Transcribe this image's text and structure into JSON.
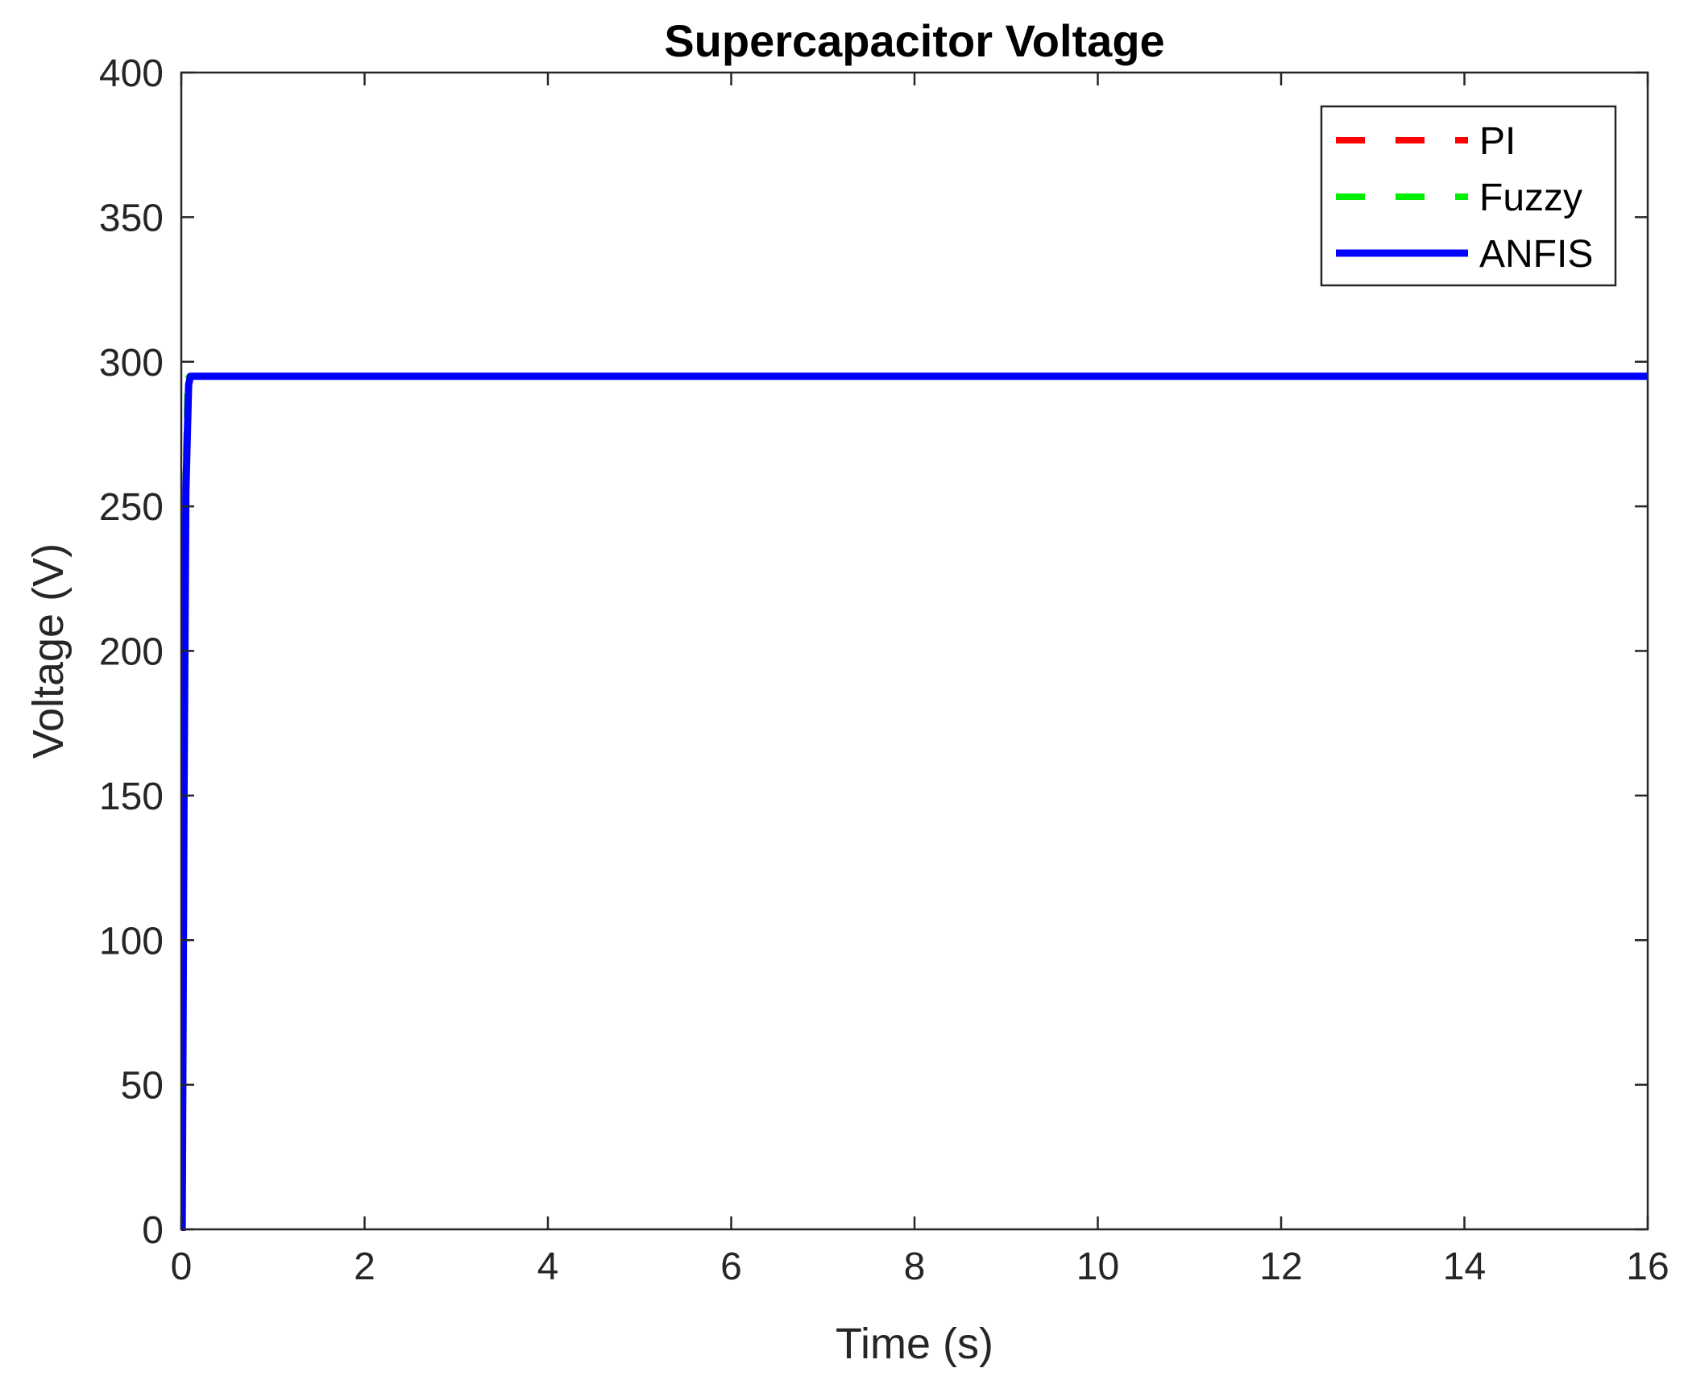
{
  "chart_data": {
    "type": "line",
    "title": "Supercapacitor Voltage",
    "xlabel": "Time (s)",
    "ylabel": "Voltage (V)",
    "xlim": [
      0,
      16
    ],
    "ylim": [
      0,
      400
    ],
    "xticks": [
      0,
      2,
      4,
      6,
      8,
      10,
      12,
      14,
      16
    ],
    "yticks": [
      0,
      50,
      100,
      150,
      200,
      250,
      300,
      350,
      400
    ],
    "grid": false,
    "legend_position": "top-right",
    "series": [
      {
        "name": "PI",
        "color": "#ff0000",
        "style": "dashed",
        "x": [
          0,
          0.01,
          0.03,
          0.05,
          0.08,
          0.1,
          16
        ],
        "y": [
          0,
          0,
          150,
          260,
          292,
          295,
          295
        ]
      },
      {
        "name": "Fuzzy",
        "color": "#00ee00",
        "style": "dashed",
        "x": [
          0,
          0.01,
          0.03,
          0.05,
          0.07,
          0.09,
          16
        ],
        "y": [
          0,
          0,
          150,
          262,
          294,
          295,
          295
        ]
      },
      {
        "name": "ANFIS",
        "color": "#0000ff",
        "style": "solid",
        "x": [
          0,
          0.01,
          0.03,
          0.05,
          0.08,
          0.1,
          16
        ],
        "y": [
          0,
          0,
          150,
          255,
          292,
          295,
          295
        ]
      }
    ]
  }
}
